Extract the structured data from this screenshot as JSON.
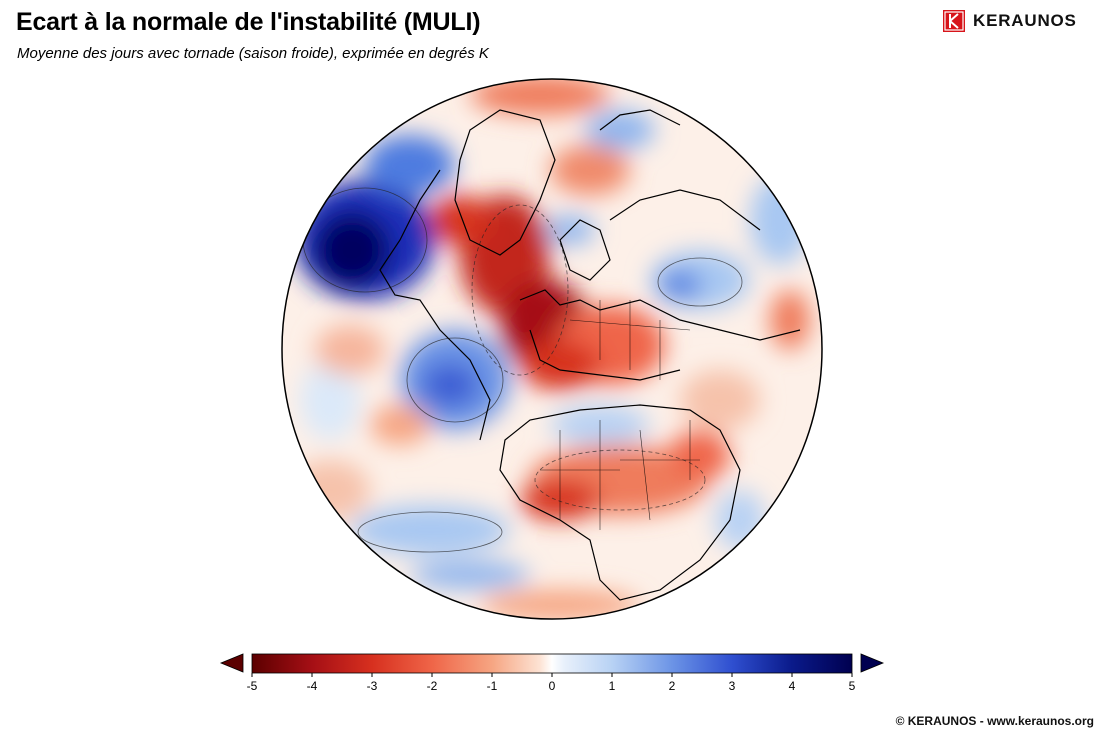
{
  "header": {
    "title": "Ecart à la normale de l'instabilité (MULI)",
    "subtitle": "Moyenne des jours avec tornade (saison froide), exprimée en degrés K"
  },
  "brand": {
    "name": "KERAUNOS",
    "color": "#d7141a",
    "icon": "keraunos-logo-icon"
  },
  "map": {
    "projection": "orthographic",
    "region_shown": "Atlantic, Europe, Africa, eastern Americas",
    "anomaly_areas": [
      {
        "name": "north-atlantic-warm",
        "value": -4.5
      },
      {
        "name": "western-europe-warm",
        "value": -4.5
      },
      {
        "name": "sahel-warm",
        "value": -3
      },
      {
        "name": "labrador-cold",
        "value": 5
      },
      {
        "name": "mid-atlantic-cold",
        "value": 3
      },
      {
        "name": "south-atlantic-cold",
        "value": 1.5
      },
      {
        "name": "russia-cold",
        "value": 2
      },
      {
        "name": "barents-warm",
        "value": -2
      }
    ]
  },
  "colorbar": {
    "ticks": [
      "-5",
      "-4",
      "-3",
      "-2",
      "-1",
      "0",
      "1",
      "2",
      "3",
      "4",
      "5"
    ],
    "min": -5,
    "max": 5,
    "extend": "both",
    "colors": [
      "#5c0000",
      "#a50f15",
      "#d7301f",
      "#ef6548",
      "#f6a582",
      "#fde3d4",
      "#ffffff",
      "#dbe9f9",
      "#9dc3f2",
      "#4f7fe0",
      "#1f3fc4",
      "#0a1a8a",
      "#000050"
    ]
  },
  "footer": {
    "copyright": "© KERAUNOS - www.keraunos.org"
  }
}
